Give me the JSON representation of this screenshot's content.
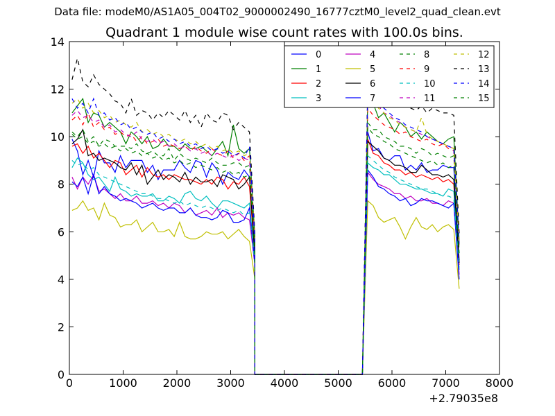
{
  "figure": {
    "supertitle": "Data file: modeM0/AS1A05_004T02_9000002490_16777cztM0_level2_quad_clean.evt",
    "title": "Quadrant 1 module wise count rates with 100.0s bins.",
    "x_offset_label": "+2.79035e8"
  },
  "chart_data": {
    "type": "line",
    "title": "Quadrant 1 module wise count rates with 100.0s bins.",
    "xlabel": "",
    "ylabel": "",
    "xlim": [
      0,
      8000
    ],
    "ylim": [
      0,
      14
    ],
    "x_offset": "+2.79035e8",
    "xticks": [
      0,
      1000,
      2000,
      3000,
      4000,
      5000,
      6000,
      7000,
      8000
    ],
    "yticks": [
      0,
      2,
      4,
      6,
      8,
      10,
      12,
      14
    ],
    "grid": false,
    "legend_position": "top-right",
    "legend_columns": 4,
    "series": [
      {
        "name": "0",
        "color": "#0000ff",
        "dash": "solid",
        "seg1": [
          9.9,
          9.4,
          8.4,
          9.0,
          8.3,
          9.4,
          8.9,
          8.9,
          8.5,
          9.2,
          8.7,
          9.0,
          9.0,
          9.0,
          8.5,
          8.8,
          8.2,
          8.6,
          8.6,
          8.6,
          9.0,
          8.7,
          8.5,
          9.0,
          8.9,
          8.3,
          8.9,
          8.6,
          8.0,
          8.5,
          8.3,
          8.2,
          8.6,
          8.3,
          5.3
        ],
        "seg2": [
          10.2,
          9.4,
          9.5,
          9.1,
          9.0,
          9.2,
          9.2,
          8.6,
          8.8,
          8.6,
          8.9,
          8.5,
          8.6,
          8.6,
          8.8,
          8.7,
          8.7,
          4.8
        ]
      },
      {
        "name": "1",
        "color": "#008000",
        "dash": "solid",
        "seg1": [
          11.0,
          11.3,
          11.6,
          10.6,
          11.0,
          10.9,
          10.4,
          10.6,
          10.4,
          10.2,
          9.7,
          10.2,
          10.0,
          9.7,
          10.0,
          9.5,
          9.6,
          9.9,
          9.6,
          9.6,
          9.4,
          9.7,
          9.5,
          9.5,
          9.6,
          9.4,
          9.2,
          9.5,
          9.8,
          9.2,
          10.5,
          9.5,
          9.3,
          9.5,
          5.8
        ],
        "seg2": [
          11.6,
          11.4,
          10.8,
          11.0,
          10.6,
          10.2,
          10.6,
          10.4,
          10.0,
          10.2,
          9.9,
          10.2,
          10.0,
          9.8,
          9.7,
          9.9,
          10.0,
          5.6
        ]
      },
      {
        "name": "2",
        "color": "#ff0000",
        "dash": "solid",
        "seg1": [
          9.6,
          9.7,
          9.3,
          9.6,
          9.1,
          9.3,
          9.0,
          8.7,
          9.0,
          8.9,
          8.4,
          8.6,
          8.8,
          8.3,
          8.7,
          8.4,
          8.3,
          8.4,
          8.2,
          8.4,
          8.3,
          8.2,
          8.2,
          8.1,
          8.0,
          8.2,
          8.0,
          8.3,
          8.2,
          7.8,
          8.1,
          8.0,
          8.3,
          7.9,
          5.0
        ],
        "seg2": [
          9.9,
          9.3,
          9.2,
          8.9,
          8.8,
          8.6,
          8.6,
          8.4,
          8.5,
          8.3,
          8.4,
          8.3,
          8.2,
          8.3,
          8.1,
          8.2,
          8.0,
          4.6
        ]
      },
      {
        "name": "3",
        "color": "#00bfbf",
        "dash": "solid",
        "seg1": [
          8.7,
          9.1,
          8.9,
          8.4,
          8.2,
          8.3,
          8.0,
          7.7,
          8.3,
          7.8,
          7.7,
          7.5,
          7.6,
          7.5,
          7.5,
          7.6,
          7.3,
          7.3,
          7.5,
          7.4,
          7.2,
          7.6,
          7.7,
          7.4,
          7.3,
          7.5,
          7.2,
          7.0,
          7.3,
          7.3,
          7.2,
          7.1,
          7.0,
          7.2,
          4.8
        ],
        "seg2": [
          8.9,
          8.7,
          8.6,
          8.4,
          8.4,
          8.2,
          8.0,
          8.0,
          7.9,
          7.8,
          7.8,
          7.7,
          7.6,
          7.6,
          7.5,
          7.8,
          7.7,
          4.4
        ]
      },
      {
        "name": "4",
        "color": "#bf00bf",
        "dash": "solid",
        "seg1": [
          8.3,
          7.8,
          8.3,
          8.0,
          8.4,
          7.7,
          7.8,
          7.6,
          7.4,
          7.6,
          7.3,
          7.3,
          7.5,
          7.2,
          7.2,
          7.3,
          7.1,
          7.2,
          7.0,
          7.2,
          7.1,
          6.8,
          7.0,
          6.7,
          6.8,
          6.9,
          6.7,
          7.0,
          6.6,
          6.8,
          6.7,
          6.8,
          6.6,
          6.5,
          4.6
        ],
        "seg2": [
          8.5,
          8.2,
          8.0,
          7.9,
          7.8,
          7.6,
          7.6,
          7.4,
          7.5,
          7.3,
          7.3,
          7.4,
          7.2,
          7.2,
          7.1,
          7.3,
          7.2,
          4.2
        ]
      },
      {
        "name": "5",
        "color": "#bfbf00",
        "dash": "solid",
        "seg1": [
          6.9,
          7.0,
          7.3,
          6.9,
          7.0,
          6.5,
          7.2,
          6.7,
          6.6,
          6.2,
          6.3,
          6.3,
          6.5,
          6.0,
          6.2,
          6.4,
          6.0,
          6.0,
          6.1,
          5.8,
          6.4,
          5.8,
          5.7,
          5.7,
          5.8,
          6.0,
          5.9,
          5.9,
          6.0,
          5.7,
          5.9,
          6.1,
          5.8,
          5.6,
          4.0
        ],
        "seg2": [
          7.3,
          7.1,
          6.6,
          6.4,
          6.5,
          6.6,
          6.2,
          5.7,
          6.2,
          6.6,
          6.2,
          6.1,
          6.3,
          6.0,
          6.2,
          6.3,
          6.1,
          3.6
        ]
      },
      {
        "name": "6",
        "color": "#000000",
        "dash": "solid",
        "seg1": [
          9.7,
          9.9,
          10.3,
          9.2,
          9.3,
          9.0,
          9.1,
          9.0,
          8.9,
          8.7,
          8.6,
          8.9,
          8.4,
          8.8,
          8.0,
          8.3,
          8.6,
          8.2,
          8.4,
          8.3,
          8.1,
          8.5,
          8.0,
          8.3,
          8.1,
          8.1,
          8.2,
          7.9,
          8.4,
          8.3,
          8.2,
          7.8,
          8.0,
          8.3,
          5.0
        ],
        "seg2": [
          9.8,
          9.6,
          9.4,
          9.1,
          9.0,
          8.8,
          8.8,
          8.7,
          8.5,
          8.5,
          8.8,
          8.6,
          8.4,
          8.4,
          8.3,
          8.4,
          8.2,
          4.7
        ]
      },
      {
        "name": "7",
        "color": "#0000ff",
        "dash": "solid",
        "seg1": [
          8.1,
          7.9,
          8.3,
          7.6,
          8.4,
          7.6,
          7.9,
          7.6,
          7.5,
          7.3,
          7.4,
          7.3,
          7.2,
          7.0,
          7.1,
          7.2,
          7.0,
          6.9,
          7.0,
          7.0,
          6.8,
          6.8,
          7.0,
          6.7,
          6.6,
          6.6,
          6.5,
          6.6,
          6.9,
          6.8,
          6.4,
          6.4,
          6.5,
          7.0,
          4.6
        ],
        "seg2": [
          8.6,
          8.3,
          7.9,
          7.8,
          7.6,
          7.5,
          7.3,
          7.4,
          7.1,
          7.2,
          7.4,
          7.3,
          7.3,
          7.2,
          7.1,
          7.0,
          7.2,
          4.0
        ]
      },
      {
        "name": "8",
        "color": "#008000",
        "dash": "dash",
        "seg1": [
          10.2,
          10.0,
          10.3,
          9.8,
          10.0,
          9.6,
          9.9,
          9.8,
          9.6,
          9.6,
          9.6,
          9.5,
          9.7,
          9.4,
          9.3,
          9.4,
          9.2,
          9.2,
          9.5,
          9.0,
          9.3,
          9.1,
          9.0,
          9.1,
          9.0,
          8.9,
          9.1,
          8.9,
          8.8,
          8.8,
          8.9,
          8.9,
          8.7,
          8.8,
          5.4
        ],
        "seg2": [
          10.6,
          10.3,
          10.3,
          10.0,
          9.9,
          9.8,
          9.6,
          9.6,
          9.5,
          9.3,
          9.5,
          9.4,
          9.2,
          9.3,
          9.2,
          9.1,
          9.2,
          5.2
        ]
      },
      {
        "name": "9",
        "color": "#ff0000",
        "dash": "dash",
        "seg1": [
          10.7,
          10.9,
          10.5,
          11.0,
          10.4,
          10.6,
          10.3,
          10.4,
          10.1,
          10.2,
          10.0,
          10.1,
          9.8,
          10.0,
          9.7,
          9.8,
          9.9,
          9.6,
          9.7,
          9.6,
          9.5,
          9.6,
          9.4,
          9.6,
          9.4,
          9.3,
          9.5,
          9.3,
          9.2,
          9.4,
          9.1,
          9.3,
          9.0,
          9.2,
          5.6
        ],
        "seg2": [
          11.2,
          10.9,
          10.7,
          10.5,
          10.4,
          10.3,
          10.1,
          10.2,
          10.0,
          9.9,
          9.8,
          9.9,
          9.7,
          9.6,
          9.7,
          9.5,
          9.4,
          5.4
        ]
      },
      {
        "name": "10",
        "color": "#00bfbf",
        "dash": "dash",
        "seg1": [
          9.0,
          8.8,
          8.9,
          8.6,
          8.7,
          8.4,
          8.3,
          8.2,
          8.1,
          8.0,
          7.9,
          7.8,
          7.7,
          7.6,
          7.6,
          7.5,
          7.4,
          7.4,
          7.3,
          7.2,
          7.3,
          7.1,
          7.2,
          7.1,
          7.0,
          7.1,
          7.0,
          6.9,
          7.0,
          6.9,
          6.8,
          6.9,
          6.7,
          6.8,
          4.7
        ],
        "seg2": [
          9.2,
          9.0,
          8.8,
          8.6,
          8.5,
          8.3,
          8.2,
          8.1,
          8.0,
          7.9,
          7.8,
          7.8,
          7.7,
          7.6,
          7.5,
          7.5,
          7.4,
          4.5
        ]
      },
      {
        "name": "11",
        "color": "#bf00bf",
        "dash": "dash",
        "seg1": [
          10.9,
          11.1,
          10.8,
          10.9,
          10.6,
          10.7,
          10.4,
          10.5,
          10.2,
          10.3,
          10.1,
          10.0,
          10.2,
          9.9,
          9.8,
          9.9,
          9.7,
          9.8,
          9.6,
          9.7,
          9.5,
          9.6,
          9.4,
          9.5,
          9.3,
          9.4,
          9.2,
          9.3,
          9.2,
          9.1,
          9.2,
          9.0,
          9.1,
          9.0,
          5.7
        ],
        "seg2": [
          12.0,
          11.5,
          11.3,
          11.0,
          10.9,
          10.7,
          10.6,
          10.4,
          10.3,
          10.2,
          10.1,
          10.0,
          9.9,
          9.8,
          9.7,
          9.6,
          9.5,
          5.5
        ]
      },
      {
        "name": "12",
        "color": "#bfbf00",
        "dash": "dash",
        "seg1": [
          11.4,
          11.6,
          11.2,
          11.4,
          11.0,
          11.1,
          10.8,
          10.9,
          10.6,
          10.7,
          10.5,
          10.4,
          10.6,
          10.2,
          10.3,
          10.1,
          10.2,
          10.0,
          10.1,
          9.9,
          9.8,
          9.9,
          9.7,
          9.8,
          9.6,
          9.7,
          9.5,
          9.6,
          9.4,
          9.5,
          9.3,
          9.4,
          9.2,
          9.3,
          5.8
        ],
        "seg2": [
          11.8,
          11.4,
          11.2,
          11.0,
          10.8,
          10.7,
          10.5,
          10.4,
          10.3,
          10.2,
          10.8,
          10.1,
          9.9,
          9.8,
          9.7,
          9.6,
          9.5,
          5.6
        ]
      },
      {
        "name": "13",
        "color": "#000000",
        "dash": "dash",
        "seg1": [
          12.4,
          13.3,
          12.3,
          12.1,
          12.6,
          12.2,
          12.0,
          11.8,
          11.5,
          11.4,
          11.0,
          11.6,
          10.9,
          11.1,
          11.0,
          10.7,
          11.0,
          10.8,
          11.1,
          10.9,
          10.7,
          11.1,
          10.6,
          10.9,
          10.4,
          11.0,
          10.7,
          10.6,
          11.0,
          10.9,
          10.3,
          10.6,
          10.4,
          10.2,
          5.9
        ],
        "seg2": [
          12.2,
          11.8,
          11.5,
          11.6,
          11.3,
          11.4,
          11.2,
          11.5,
          11.2,
          11.1,
          11.3,
          11.0,
          11.2,
          11.1,
          11.0,
          11.0,
          10.9,
          5.9
        ]
      },
      {
        "name": "14",
        "color": "#0000ff",
        "dash": "dash",
        "seg1": [
          11.6,
          11.2,
          11.4,
          11.0,
          11.6,
          10.9,
          11.0,
          10.7,
          10.8,
          10.5,
          10.6,
          10.3,
          10.4,
          10.2,
          10.1,
          10.2,
          9.9,
          10.0,
          9.8,
          9.9,
          9.7,
          9.8,
          9.6,
          9.7,
          9.5,
          9.6,
          9.4,
          9.5,
          9.3,
          9.4,
          9.2,
          9.3,
          9.1,
          9.6,
          5.7
        ],
        "seg2": [
          11.9,
          11.6,
          11.4,
          11.2,
          11.0,
          10.8,
          10.7,
          10.5,
          10.4,
          10.3,
          10.2,
          10.0,
          9.9,
          9.8,
          9.7,
          9.6,
          9.5,
          5.5
        ]
      },
      {
        "name": "15",
        "color": "#008000",
        "dash": "dash",
        "seg1": [
          10.1,
          9.9,
          10.0,
          9.7,
          9.8,
          9.6,
          9.7,
          9.5,
          9.6,
          9.4,
          9.5,
          9.3,
          9.4,
          9.2,
          9.3,
          9.1,
          9.2,
          9.0,
          9.1,
          8.9,
          9.0,
          8.8,
          8.9,
          8.7,
          8.8,
          8.7,
          8.6,
          8.7,
          8.5,
          8.6,
          8.4,
          8.5,
          8.3,
          8.4,
          5.3
        ],
        "seg2": [
          10.4,
          10.1,
          10.0,
          9.8,
          9.7,
          9.5,
          9.4,
          9.3,
          9.2,
          9.1,
          9.0,
          8.9,
          9.0,
          8.8,
          8.9,
          8.7,
          8.8,
          5.1
        ]
      }
    ]
  }
}
